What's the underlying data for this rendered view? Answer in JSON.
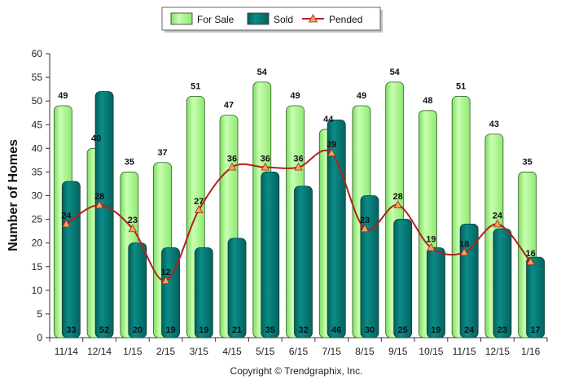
{
  "chart_data": {
    "type": "bar",
    "ylabel": "Number of Homes",
    "xlabel": "",
    "ylim": [
      0,
      60
    ],
    "ytick_step": 5,
    "grid": false,
    "legend_position": "top",
    "categories": [
      "11/14",
      "12/14",
      "1/15",
      "2/15",
      "3/15",
      "4/15",
      "5/15",
      "6/15",
      "7/15",
      "8/15",
      "9/15",
      "10/15",
      "11/15",
      "12/15",
      "1/16"
    ],
    "series": [
      {
        "name": "For Sale",
        "kind": "bar",
        "color": "#a6f58a",
        "values": [
          49,
          40,
          35,
          37,
          51,
          47,
          54,
          49,
          44,
          49,
          54,
          48,
          51,
          43,
          35
        ]
      },
      {
        "name": "Sold",
        "kind": "bar",
        "color": "#067b78",
        "values": [
          33,
          52,
          20,
          19,
          19,
          21,
          35,
          32,
          46,
          30,
          25,
          19,
          24,
          23,
          17
        ]
      },
      {
        "name": "Pended",
        "kind": "line",
        "color": "#b3211b",
        "marker_color": "#f2a65c",
        "values": [
          24,
          28,
          23,
          12,
          27,
          36,
          36,
          36,
          39,
          23,
          28,
          19,
          18,
          24,
          16
        ]
      }
    ],
    "footer": "Copyright © Trendgraphix, Inc."
  }
}
